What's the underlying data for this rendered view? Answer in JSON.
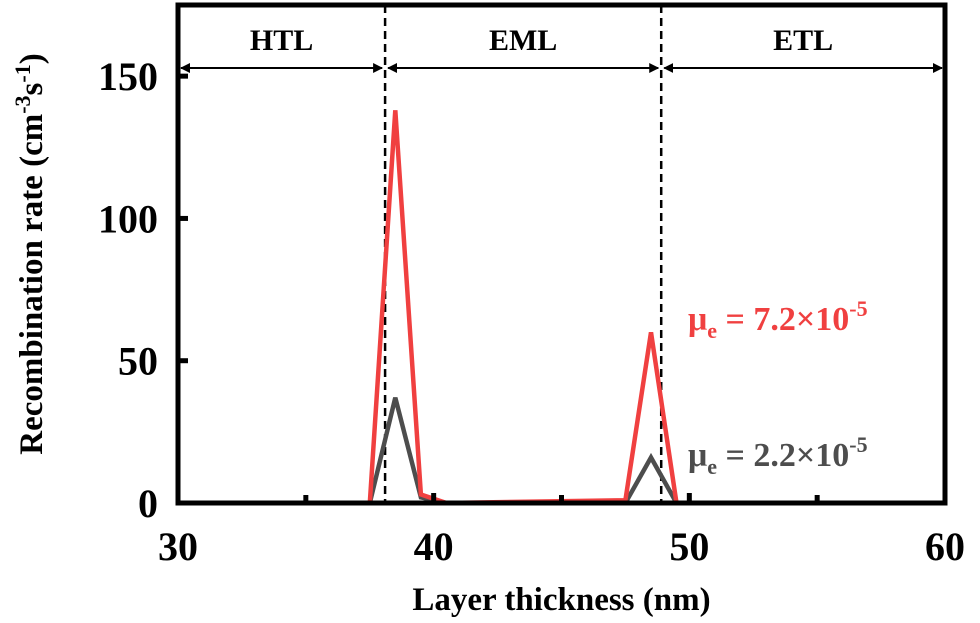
{
  "chart_data": {
    "type": "line",
    "xlabel": "Layer thickness (nm)",
    "ylabel": {
      "text_main": "Recombination rate (cm",
      "sup1": "-3",
      "text_mid": "s",
      "sup2": "-1",
      "text_end": ")"
    },
    "xlim": [
      30,
      60
    ],
    "ylim": [
      0,
      175
    ],
    "x_ticks": [
      30,
      40,
      50,
      60
    ],
    "y_ticks": [
      0,
      50,
      100,
      150
    ],
    "x_tick_labels": [
      "30",
      "40",
      "50",
      "60"
    ],
    "y_tick_labels": [
      "0",
      "50",
      "100",
      "150"
    ],
    "grid": false,
    "regions": [
      {
        "label": "HTL",
        "x_start": 30,
        "x_end": 38.1
      },
      {
        "label": "EML",
        "x_start": 38.1,
        "x_end": 48.9
      },
      {
        "label": "ETL",
        "x_start": 48.9,
        "x_end": 60
      }
    ],
    "boundaries": [
      38.1,
      48.9
    ],
    "series": [
      {
        "label_main": "μ",
        "label_sub": "e",
        "label_value": " = 2.2×10",
        "label_sup": "-5",
        "color": "#4d4d4d",
        "x": [
          30,
          37.5,
          38.5,
          39.5,
          40.5,
          47.5,
          48.5,
          49.5,
          60
        ],
        "y": [
          0,
          0,
          37,
          2,
          0,
          0,
          16,
          0,
          0
        ]
      },
      {
        "label_main": "μ",
        "label_sub": "e",
        "label_value": " = 7.2×10",
        "label_sup": "-5",
        "color": "#f04040",
        "x": [
          30,
          37.5,
          38.5,
          39.5,
          40.5,
          47.5,
          48.5,
          49.5,
          60
        ],
        "y": [
          0,
          0,
          138,
          3,
          0,
          1,
          60,
          0,
          0
        ]
      }
    ]
  }
}
